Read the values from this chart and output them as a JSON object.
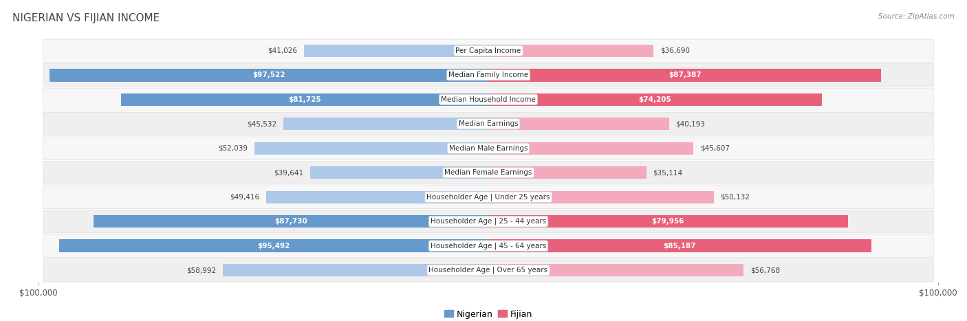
{
  "title": "NIGERIAN VS FIJIAN INCOME",
  "source": "Source: ZipAtlas.com",
  "categories": [
    "Per Capita Income",
    "Median Family Income",
    "Median Household Income",
    "Median Earnings",
    "Median Male Earnings",
    "Median Female Earnings",
    "Householder Age | Under 25 years",
    "Householder Age | 25 - 44 years",
    "Householder Age | 45 - 64 years",
    "Householder Age | Over 65 years"
  ],
  "nigerian_values": [
    41026,
    97522,
    81725,
    45532,
    52039,
    39641,
    49416,
    87730,
    95492,
    58992
  ],
  "fijian_values": [
    36690,
    87387,
    74205,
    40193,
    45607,
    35114,
    50132,
    79956,
    85187,
    56768
  ],
  "nigerian_color_light": "#adc8e8",
  "nigerian_color_dark": "#6699cc",
  "fijian_color_light": "#f2aabc",
  "fijian_color_dark": "#e8607a",
  "max_value": 100000,
  "bg_color": "#ffffff",
  "row_colors": [
    "#f7f7f7",
    "#efefef"
  ],
  "label_fontsize": 7.5,
  "bar_height": 0.52,
  "large_threshold": 60000
}
